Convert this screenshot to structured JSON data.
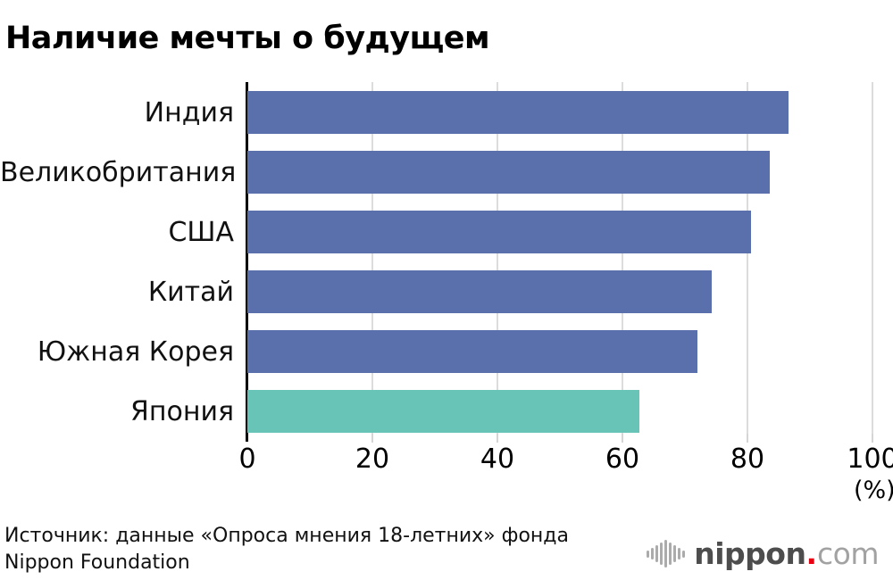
{
  "title": "Наличие мечты о будущем",
  "chart_data": {
    "type": "bar",
    "orientation": "horizontal",
    "title": "Наличие мечты о будущем",
    "categories": [
      "Индия",
      "Великобритания",
      "США",
      "Китай",
      "Южная Корея",
      "Япония"
    ],
    "values": [
      86.5,
      83.5,
      80.5,
      74.3,
      72.0,
      62.7
    ],
    "unit": "%",
    "xlabel": "(%)",
    "xlim": [
      0,
      100
    ],
    "xticks": [
      0,
      20,
      40,
      60,
      80,
      100
    ],
    "grid": true,
    "legend": "none",
    "bar_color_default": "#5a70ad",
    "bar_color_highlight": "#68c4b6",
    "highlight_category": "Япония",
    "gridline_color": "#dcdcdc",
    "axis_color": "#000000"
  },
  "source": {
    "line1": "Источник: данные «Опроса мнения 18-летних» фонда",
    "line2": "Nippon Foundation"
  },
  "logo": {
    "name": "nippon",
    "dot": ".",
    "tld": "com",
    "icon": "sound-bars-icon"
  }
}
